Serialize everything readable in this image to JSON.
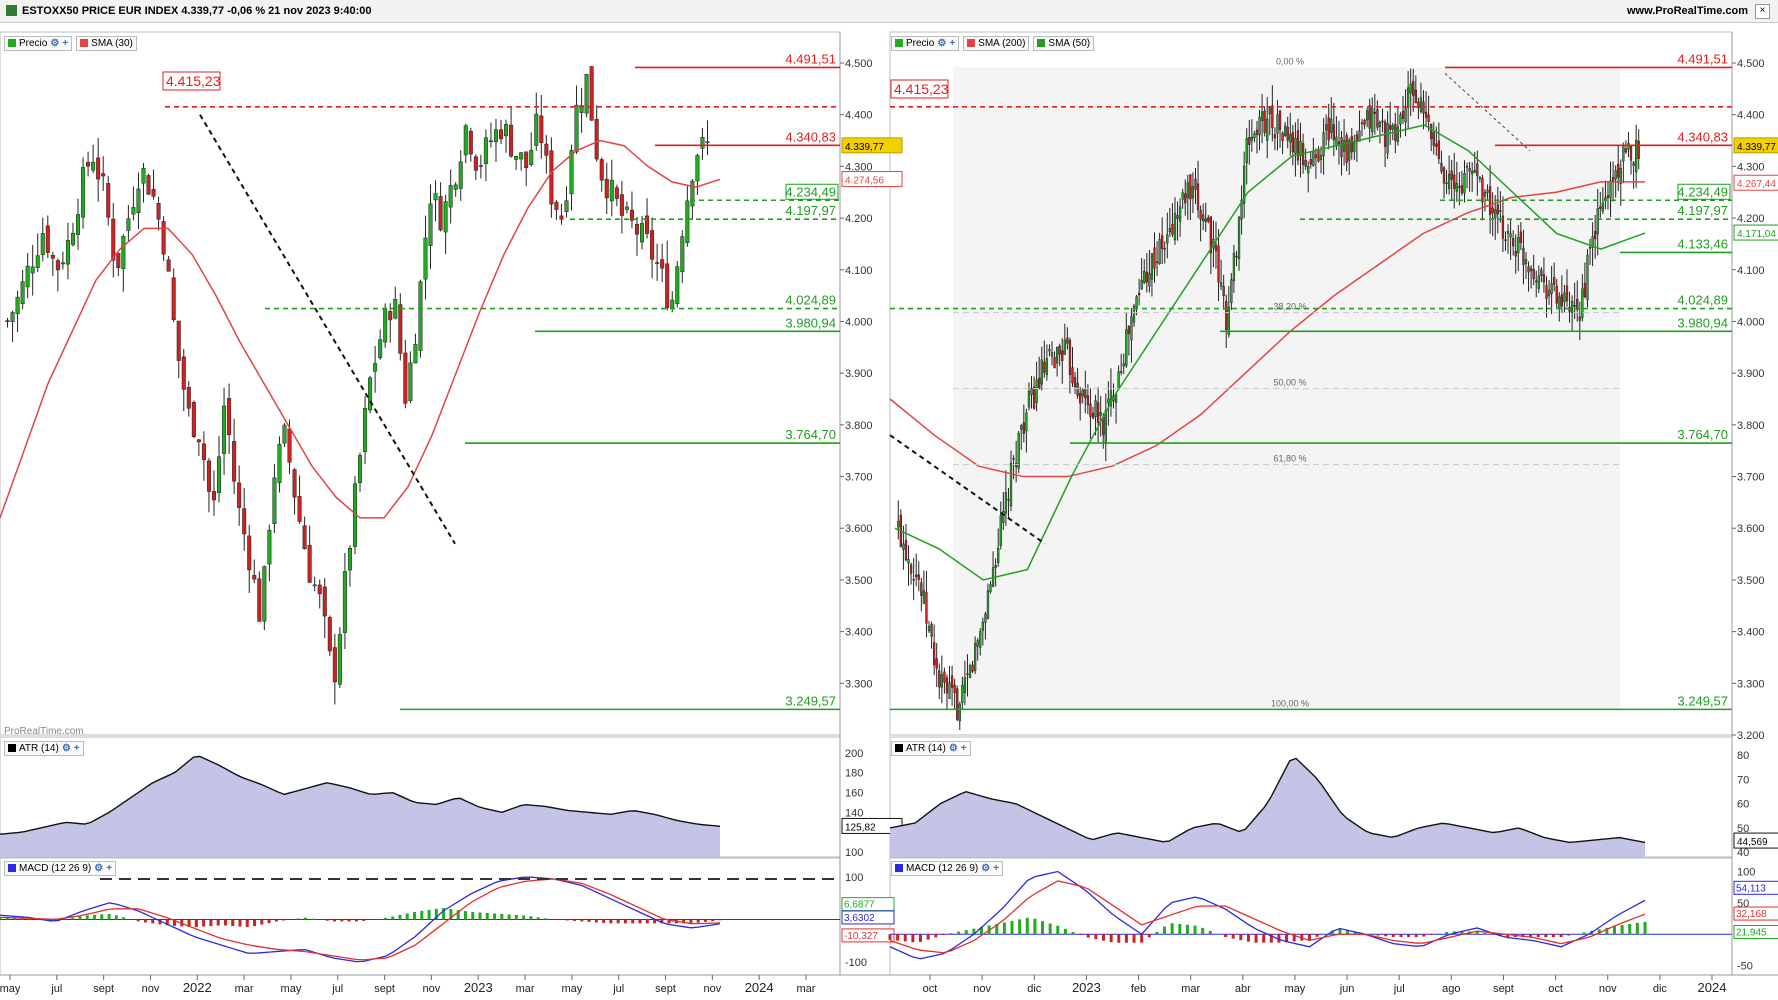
{
  "title": "ESTOXX50 PRICE EUR INDEX 4.339,77 -0,06 % 21 nov 2023 9:40:00",
  "site": "www.ProRealTime.com",
  "watermark": "ProRealTime.com",
  "colors": {
    "up": "#22aa22",
    "down": "#cc2222",
    "resistance": "#e02020",
    "support": "#1f9e1f",
    "sma_red": "#e04545",
    "sma_green": "#1fa01f",
    "atr_fill": "#c4c4e6",
    "macd_line": "#2a2adf",
    "signal_line": "#e03030",
    "price_label": "#f5d000"
  },
  "left": {
    "legend": [
      "Precio",
      "SMA (30)"
    ],
    "y_ticks": [
      "4.500",
      "4.400",
      "4.300",
      "4.200",
      "4.100",
      "4.000",
      "3.900",
      "3.800",
      "3.700",
      "3.600",
      "3.500",
      "3.400",
      "3.300"
    ],
    "x_ticks": [
      "may",
      "jul",
      "sept",
      "nov",
      "2022",
      "mar",
      "may",
      "jul",
      "sept",
      "nov",
      "2023",
      "mar",
      "may",
      "jul",
      "sept",
      "nov",
      "2024",
      "mar"
    ],
    "levels": [
      "4.491,51",
      "4.415,23",
      "4.340,83",
      "4.234,49",
      "4.197,97",
      "4.024,89",
      "3.980,94",
      "3.764,70",
      "3.249,57"
    ],
    "price_badge": "4.339,77",
    "sma_badge": "4.274,56",
    "atr": {
      "legend": "ATR (14)",
      "ticks": [
        "200",
        "180",
        "160",
        "140",
        "100"
      ],
      "badge": "125,82"
    },
    "macd": {
      "legend": "MACD (12 26 9)",
      "ticks": [
        "100",
        "-100"
      ],
      "badges": [
        "6,6877",
        "3,6302",
        "-10,327"
      ]
    }
  },
  "right": {
    "legend": [
      "Precio",
      "SMA (200)",
      "SMA (50)"
    ],
    "y_ticks": [
      "4.500",
      "4.400",
      "4.300",
      "4.200",
      "4.100",
      "4.000",
      "3.900",
      "3.800",
      "3.700",
      "3.600",
      "3.500",
      "3.400",
      "3.300",
      "3.200"
    ],
    "x_ticks": [
      "oct",
      "nov",
      "dic",
      "2023",
      "feb",
      "mar",
      "abr",
      "may",
      "jun",
      "jul",
      "ago",
      "sept",
      "oct",
      "nov",
      "dic",
      "2024"
    ],
    "levels": [
      "4.491,51",
      "4.415,23",
      "4.340,83",
      "4.234,49",
      "4.197,97",
      "4.133,46",
      "4.024,89",
      "3.980,94",
      "3.764,70",
      "3.249,57"
    ],
    "fib": [
      "0,00 %",
      "38,20 %",
      "50,00 %",
      "61,80 %",
      "100,00 %"
    ],
    "price_badge": "4.339,77",
    "sma200_badge": "4.267,44",
    "sma50_badge": "4.171,04",
    "atr": {
      "legend": "ATR (14)",
      "ticks": [
        "80",
        "70",
        "60",
        "50",
        "40"
      ],
      "badge": "44,569"
    },
    "macd": {
      "legend": "MACD (12 26 9)",
      "ticks": [
        "100",
        "50",
        "0",
        "-50"
      ],
      "badges": [
        "54,113",
        "32,168",
        "21,945"
      ]
    }
  },
  "chart_data": [
    {
      "type": "candlestick",
      "title": "ESTOXX50 PRICE EUR INDEX",
      "period": "weekly",
      "ylim": [
        3200,
        4560
      ],
      "x_ticks": [
        "may",
        "jul",
        "sept",
        "nov",
        "2022",
        "mar",
        "may",
        "jul",
        "sept",
        "nov",
        "2023",
        "mar",
        "may",
        "jul",
        "sept",
        "nov",
        "2024",
        "mar"
      ],
      "close_path": [
        4000,
        4050,
        4120,
        4180,
        4100,
        4150,
        4250,
        4330,
        4250,
        4100,
        4200,
        4300,
        4250,
        4150,
        3950,
        3820,
        3780,
        3620,
        3850,
        3650,
        3550,
        3420,
        3700,
        3780,
        3640,
        3520,
        3450,
        3300,
        3500,
        3700,
        3880,
        3980,
        4050,
        3850,
        4020,
        4250,
        4200,
        4280,
        4380,
        4300,
        4350,
        4380,
        4330,
        4300,
        4390,
        4250,
        4200,
        4400,
        4470,
        4300,
        4250,
        4200,
        4180,
        4150,
        4100,
        4030,
        4200,
        4330,
        4340
      ],
      "series": [
        {
          "name": "SMA (30)",
          "values": [
            3620,
            3750,
            3880,
            3980,
            4080,
            4140,
            4180,
            4180,
            4130,
            4050,
            3960,
            3880,
            3800,
            3720,
            3660,
            3620,
            3620,
            3680,
            3780,
            3900,
            4020,
            4130,
            4220,
            4290,
            4330,
            4350,
            4340,
            4300,
            4270,
            4260,
            4275
          ]
        }
      ],
      "levels": [
        4491.51,
        4415.23,
        4340.83,
        4234.49,
        4197.97,
        4024.89,
        3980.94,
        3764.7,
        3249.57
      ]
    },
    {
      "type": "line",
      "title": "ATR (14)",
      "ylim": [
        100,
        210
      ],
      "values": [
        118,
        120,
        125,
        130,
        128,
        140,
        155,
        170,
        180,
        198,
        188,
        176,
        168,
        158,
        164,
        170,
        165,
        158,
        160,
        150,
        148,
        155,
        145,
        140,
        148,
        146,
        142,
        140,
        138,
        142,
        138,
        132,
        128,
        126
      ]
    },
    {
      "type": "line",
      "title": "MACD (12 26 9)",
      "ylim": [
        -130,
        130
      ],
      "series": [
        {
          "name": "MACD",
          "values": [
            10,
            5,
            -5,
            20,
            40,
            20,
            -10,
            -40,
            -60,
            -80,
            -75,
            -70,
            -90,
            -100,
            -85,
            -40,
            20,
            60,
            90,
            100,
            95,
            80,
            50,
            20,
            -10,
            -20,
            -10
          ]
        },
        {
          "name": "Signal",
          "values": [
            5,
            3,
            0,
            10,
            25,
            25,
            5,
            -20,
            -45,
            -60,
            -70,
            -75,
            -85,
            -95,
            -90,
            -60,
            -10,
            40,
            75,
            90,
            95,
            85,
            60,
            30,
            0,
            -10,
            -8
          ]
        }
      ]
    },
    {
      "type": "candlestick",
      "title": "ESTOXX50 PRICE EUR INDEX",
      "period": "daily",
      "ylim": [
        3200,
        4560
      ],
      "x_ticks": [
        "oct",
        "nov",
        "dic",
        "2023",
        "feb",
        "mar",
        "abr",
        "may",
        "jun",
        "jul",
        "ago",
        "sept",
        "oct",
        "nov",
        "dic",
        "2024"
      ],
      "close_path": [
        3600,
        3500,
        3300,
        3250,
        3400,
        3600,
        3800,
        3900,
        3950,
        3850,
        3800,
        3950,
        4100,
        4150,
        4250,
        4200,
        4000,
        4350,
        4400,
        4350,
        4300,
        4380,
        4320,
        4400,
        4350,
        4450,
        4350,
        4250,
        4300,
        4200,
        4150,
        4100,
        4050,
        4000,
        4200,
        4300,
        4340
      ],
      "series": [
        {
          "name": "SMA (200)",
          "values": [
            3850,
            3780,
            3720,
            3700,
            3700,
            3720,
            3760,
            3820,
            3900,
            3980,
            4050,
            4110,
            4170,
            4210,
            4240,
            4250,
            4270,
            4270
          ]
        },
        {
          "name": "SMA (50)",
          "values": [
            3600,
            3560,
            3500,
            3520,
            3700,
            3860,
            3990,
            4120,
            4250,
            4320,
            4340,
            4360,
            4380,
            4330,
            4250,
            4170,
            4140,
            4171
          ]
        }
      ],
      "levels": [
        4491.51,
        4415.23,
        4340.83,
        4234.49,
        4197.97,
        4133.46,
        4024.89,
        3980.94,
        3764.7,
        3249.57
      ],
      "fibonacci": [
        "0,00 %",
        "38,20 %",
        "50,00 %",
        "61,80 %",
        "100,00 %"
      ]
    },
    {
      "type": "line",
      "title": "ATR (14)",
      "ylim": [
        40,
        85
      ],
      "values": [
        50,
        52,
        60,
        65,
        62,
        60,
        55,
        50,
        45,
        48,
        46,
        44,
        50,
        52,
        48,
        60,
        80,
        70,
        55,
        48,
        46,
        50,
        52,
        50,
        48,
        50,
        46,
        44,
        45,
        46,
        44
      ]
    },
    {
      "type": "line",
      "title": "MACD (12 26 9)",
      "ylim": [
        -60,
        110
      ],
      "series": [
        {
          "name": "MACD",
          "values": [
            -20,
            -40,
            -30,
            0,
            40,
            90,
            100,
            70,
            30,
            0,
            50,
            60,
            40,
            10,
            -10,
            -20,
            10,
            0,
            -15,
            -20,
            0,
            10,
            -5,
            -10,
            -20,
            0,
            30,
            54
          ]
        },
        {
          "name": "Signal",
          "values": [
            -10,
            -25,
            -30,
            -10,
            20,
            60,
            85,
            75,
            45,
            15,
            30,
            45,
            45,
            25,
            5,
            -10,
            0,
            0,
            -10,
            -15,
            -5,
            5,
            0,
            -5,
            -15,
            -5,
            15,
            32
          ]
        }
      ]
    }
  ]
}
